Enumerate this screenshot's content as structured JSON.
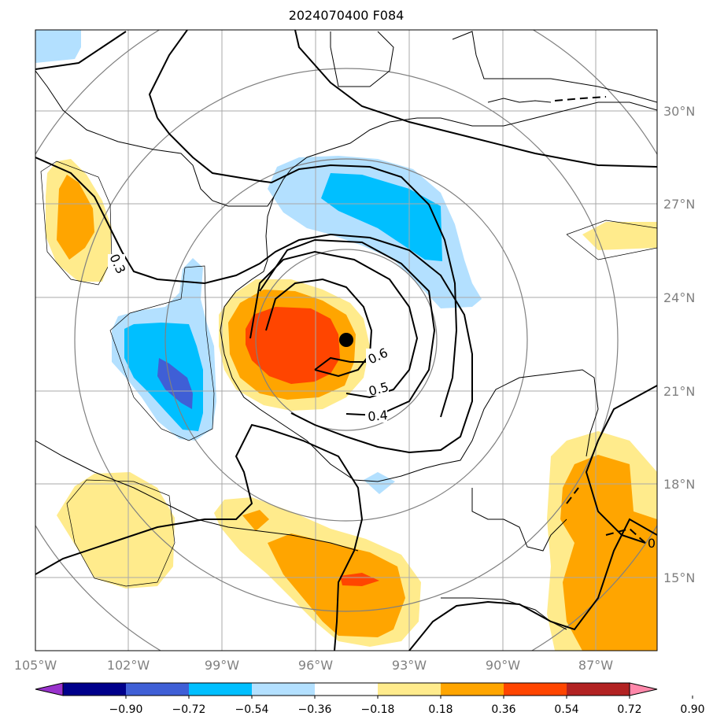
{
  "title": "2024070400 F084",
  "lon_labels": [
    "105°W",
    "102°W",
    "99°W",
    "96°W",
    "93°W",
    "90°W",
    "87°W"
  ],
  "lat_labels": [
    "30°N",
    "27°N",
    "24°N",
    "21°N",
    "18°N",
    "15°N"
  ],
  "colorbar": {
    "ticks": [
      "−0.90",
      "−0.72",
      "−0.54",
      "−0.36",
      "−0.18",
      "0.18",
      "0.36",
      "0.54",
      "0.72",
      "0.90"
    ],
    "colors": [
      "#9932cc",
      "#00008b",
      "#3f5fd6",
      "#00bfff",
      "#b3e0ff",
      "#ffffff",
      "#ffeb8c",
      "#ffa500",
      "#ff4500",
      "#b22222",
      "#ff88aa"
    ]
  },
  "contour_labels": [
    "0.6",
    "0.5",
    "0.4",
    "0.3",
    "0"
  ],
  "fill_colors": {
    "neg_light": "#b3e0ff",
    "neg_mid": "#00bfff",
    "neg_dark": "#3f5fd6",
    "pos_light": "#ffeb8c",
    "pos_mid": "#ffa500",
    "pos_dark": "#ff4500"
  },
  "storm_center_marker": "filled-circle",
  "graticule_color": "#a9a9a9"
}
